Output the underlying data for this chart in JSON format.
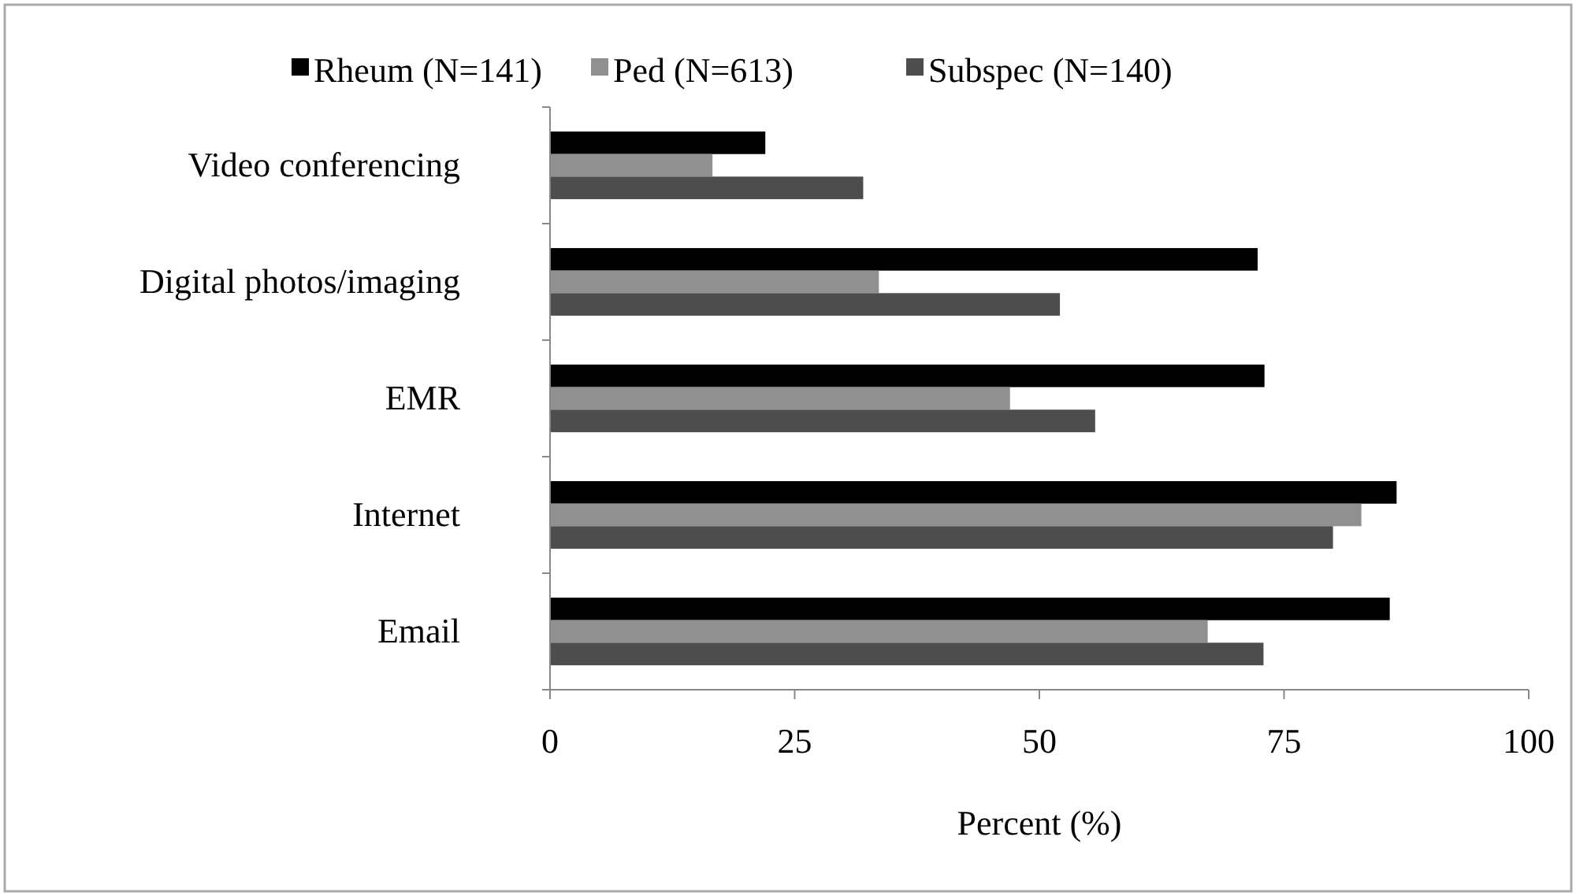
{
  "chart_data": {
    "type": "bar",
    "orientation": "horizontal",
    "xlabel": "Percent (%)",
    "categories": [
      "Video conferencing",
      "Digital photos/imaging",
      "EMR",
      "Internet",
      "Email"
    ],
    "series": [
      {
        "name": "Rheum (N=141)",
        "color": "#000000",
        "values": [
          22,
          72.3,
          73,
          86.5,
          85.8
        ]
      },
      {
        "name": "Ped (N=613)",
        "color": "#909090",
        "values": [
          16.6,
          33.6,
          47,
          82.9,
          67.2
        ]
      },
      {
        "name": "Subspec (N=140)",
        "color": "#4d4d4d",
        "values": [
          32,
          52.1,
          55.7,
          80,
          72.9
        ]
      }
    ],
    "xlim": [
      0,
      100
    ],
    "xticks": [
      0,
      25,
      50,
      75,
      100
    ],
    "legend": "top",
    "grid": false
  }
}
